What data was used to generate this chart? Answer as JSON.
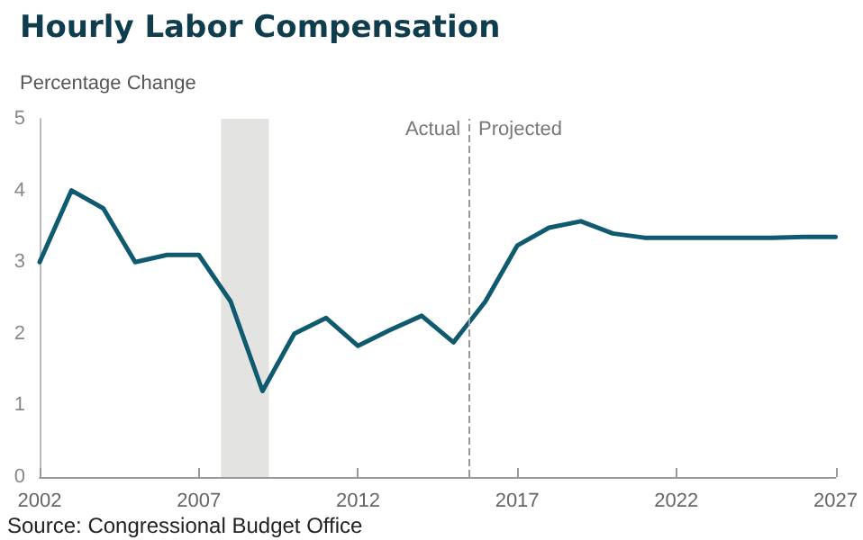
{
  "chart_data": {
    "type": "line",
    "title": "Hourly Labor Compensation",
    "ylabel": "Percentage Change",
    "x": [
      2002,
      2003,
      2004,
      2005,
      2006,
      2007,
      2008,
      2009,
      2010,
      2011,
      2012,
      2013,
      2014,
      2015,
      2016,
      2017,
      2018,
      2019,
      2020,
      2021,
      2022,
      2023,
      2024,
      2025,
      2026,
      2027
    ],
    "series": [
      {
        "color": "#0f5a6e",
        "values": [
          3.0,
          4.0,
          3.75,
          3.0,
          3.1,
          3.1,
          2.45,
          1.2,
          2.0,
          2.22,
          1.83,
          2.05,
          2.25,
          1.88,
          2.45,
          3.23,
          3.48,
          3.57,
          3.4,
          3.34,
          3.34,
          3.34,
          3.34,
          3.34,
          3.35,
          3.35
        ]
      }
    ],
    "xlim": [
      2002,
      2027
    ],
    "xticks": [
      2002,
      2007,
      2012,
      2017,
      2022,
      2027
    ],
    "ylim": [
      0,
      5
    ],
    "yticks": [
      0,
      1,
      2,
      3,
      4,
      5
    ],
    "bands": [
      {
        "axis": "x",
        "from": 2007.7,
        "to": 2009.2,
        "color": "#e3e3e1"
      }
    ],
    "ref_lines": [
      {
        "axis": "x",
        "value": 2015.5,
        "color": "#999999",
        "line_style": "dashed"
      }
    ],
    "annotations": [
      "Actual",
      "Projected",
      "Source: Congressional Budget Office"
    ],
    "grid": false,
    "marker": "none",
    "line_style": "solid"
  }
}
